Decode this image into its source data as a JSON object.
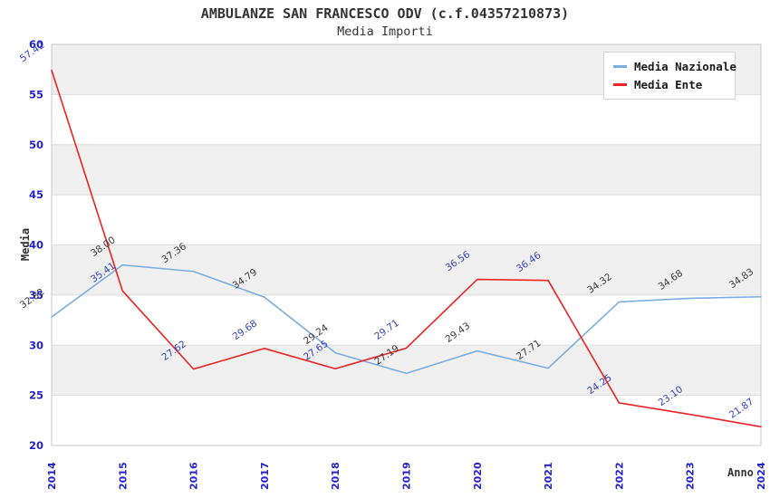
{
  "header": {
    "title": "AMBULANZE SAN FRANCESCO ODV (c.f.04357210873)",
    "subtitle": "Media Importi"
  },
  "chart_data": {
    "type": "line",
    "x": [
      2014,
      2015,
      2016,
      2017,
      2018,
      2019,
      2020,
      2021,
      2022,
      2023,
      2024
    ],
    "xlabel": "Anno",
    "ylabel": "Media",
    "ylim": [
      20,
      60
    ],
    "ytick_step": 5,
    "yticks": [
      20,
      25,
      30,
      35,
      40,
      45,
      50,
      55,
      60
    ],
    "grid": "alternating-horizontal-bands",
    "legend_position": "top-right",
    "series": [
      {
        "name": "Media Nazionale",
        "color": "#78ade2",
        "label_color": "#3a3a3a",
        "values": [
          32.82,
          38.0,
          37.36,
          34.79,
          29.24,
          27.19,
          29.43,
          27.71,
          34.32,
          34.68,
          34.83
        ]
      },
      {
        "name": "Media Ente",
        "color": "#ee2222",
        "label_color": "#3344bb",
        "values": [
          57.42,
          35.41,
          27.62,
          29.68,
          27.65,
          29.71,
          36.56,
          36.46,
          24.25,
          23.1,
          21.87
        ]
      }
    ]
  },
  "colors": {
    "tick_label": "#2222d0",
    "band_gray": "#f0f0f0",
    "grid_line": "#dcdcdc",
    "plot_border": "#c8c8c8",
    "title_text": "#333333"
  }
}
